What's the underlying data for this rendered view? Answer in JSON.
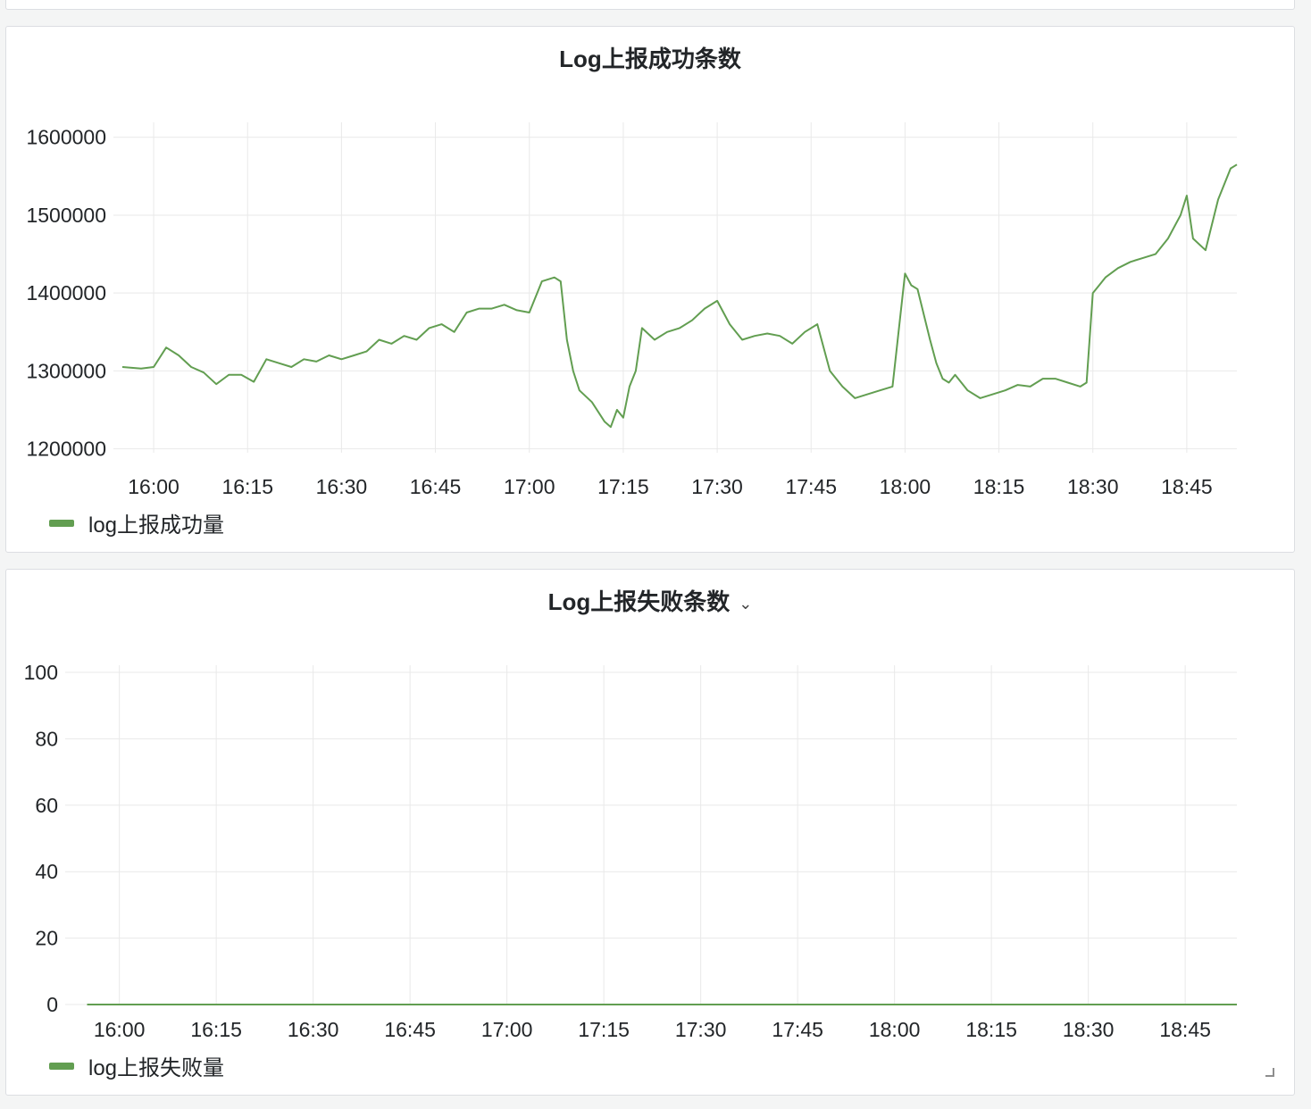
{
  "colors": {
    "series": "#629e51",
    "grid": "#e9e9e9",
    "text": "#222528"
  },
  "panels": [
    {
      "title": "Log上报成功条数",
      "has_menu": false,
      "legend_label": "log上报成功量"
    },
    {
      "title": "Log上报失败条数",
      "has_menu": true,
      "menu_icon": "chevron-down-icon",
      "legend_label": "log上报失败量"
    }
  ],
  "chart_data": [
    {
      "type": "line",
      "title": "Log上报成功条数",
      "x_type": "time",
      "x_range": [
        "15:55",
        "18:53"
      ],
      "x_ticks": [
        "16:00",
        "16:15",
        "16:30",
        "16:45",
        "17:00",
        "17:15",
        "17:30",
        "17:45",
        "18:00",
        "18:15",
        "18:30",
        "18:45"
      ],
      "ylim": [
        1195000,
        1610000
      ],
      "y_ticks": [
        1200000,
        1300000,
        1400000,
        1500000,
        1600000
      ],
      "grid": true,
      "legend_position": "bottom-left",
      "series": [
        {
          "name": "log上报成功量",
          "color": "#629e51",
          "x": [
            "15:55",
            "15:58",
            "16:00",
            "16:02",
            "16:04",
            "16:06",
            "16:08",
            "16:10",
            "16:12",
            "16:14",
            "16:16",
            "16:18",
            "16:20",
            "16:22",
            "16:24",
            "16:26",
            "16:28",
            "16:30",
            "16:32",
            "16:34",
            "16:36",
            "16:38",
            "16:40",
            "16:42",
            "16:44",
            "16:46",
            "16:48",
            "16:50",
            "16:52",
            "16:54",
            "16:56",
            "16:58",
            "17:00",
            "17:02",
            "17:04",
            "17:05",
            "17:06",
            "17:07",
            "17:08",
            "17:10",
            "17:12",
            "17:13",
            "17:14",
            "17:15",
            "17:16",
            "17:17",
            "17:18",
            "17:20",
            "17:22",
            "17:24",
            "17:26",
            "17:28",
            "17:30",
            "17:32",
            "17:34",
            "17:36",
            "17:38",
            "17:40",
            "17:42",
            "17:44",
            "17:46",
            "17:48",
            "17:50",
            "17:52",
            "17:54",
            "17:56",
            "17:58",
            "18:00",
            "18:01",
            "18:02",
            "18:04",
            "18:05",
            "18:06",
            "18:07",
            "18:08",
            "18:10",
            "18:12",
            "18:14",
            "18:16",
            "18:18",
            "18:20",
            "18:22",
            "18:24",
            "18:26",
            "18:28",
            "18:29",
            "18:30",
            "18:31",
            "18:32",
            "18:34",
            "18:36",
            "18:38",
            "18:40",
            "18:42",
            "18:44",
            "18:45",
            "18:46",
            "18:48",
            "18:50",
            "18:52",
            "18:53"
          ],
          "values": [
            1305000,
            1303000,
            1305000,
            1330000,
            1320000,
            1305000,
            1298000,
            1283000,
            1295000,
            1295000,
            1286000,
            1315000,
            1310000,
            1305000,
            1315000,
            1312000,
            1320000,
            1315000,
            1320000,
            1325000,
            1340000,
            1335000,
            1345000,
            1340000,
            1355000,
            1360000,
            1350000,
            1375000,
            1380000,
            1380000,
            1385000,
            1378000,
            1375000,
            1415000,
            1420000,
            1415000,
            1340000,
            1300000,
            1275000,
            1260000,
            1235000,
            1228000,
            1250000,
            1240000,
            1280000,
            1300000,
            1355000,
            1340000,
            1350000,
            1355000,
            1365000,
            1380000,
            1390000,
            1360000,
            1340000,
            1345000,
            1348000,
            1345000,
            1335000,
            1350000,
            1360000,
            1300000,
            1280000,
            1265000,
            1270000,
            1275000,
            1280000,
            1425000,
            1410000,
            1405000,
            1340000,
            1310000,
            1290000,
            1285000,
            1295000,
            1275000,
            1265000,
            1270000,
            1275000,
            1282000,
            1280000,
            1290000,
            1290000,
            1285000,
            1280000,
            1285000,
            1400000,
            1410000,
            1420000,
            1432000,
            1440000,
            1445000,
            1450000,
            1470000,
            1500000,
            1525000,
            1470000,
            1455000,
            1520000,
            1560000,
            1565000
          ]
        }
      ]
    },
    {
      "type": "line",
      "title": "Log上报失败条数",
      "x_type": "time",
      "x_range": [
        "15:55",
        "18:53"
      ],
      "x_ticks": [
        "16:00",
        "16:15",
        "16:30",
        "16:45",
        "17:00",
        "17:15",
        "17:30",
        "17:45",
        "18:00",
        "18:15",
        "18:30",
        "18:45"
      ],
      "ylim": [
        0,
        100
      ],
      "y_ticks": [
        0,
        20,
        40,
        60,
        80,
        100
      ],
      "grid": true,
      "legend_position": "bottom-left",
      "series": [
        {
          "name": "log上报失败量",
          "color": "#629e51",
          "x": [
            "15:55",
            "18:53"
          ],
          "values": [
            0,
            0
          ]
        }
      ]
    }
  ]
}
